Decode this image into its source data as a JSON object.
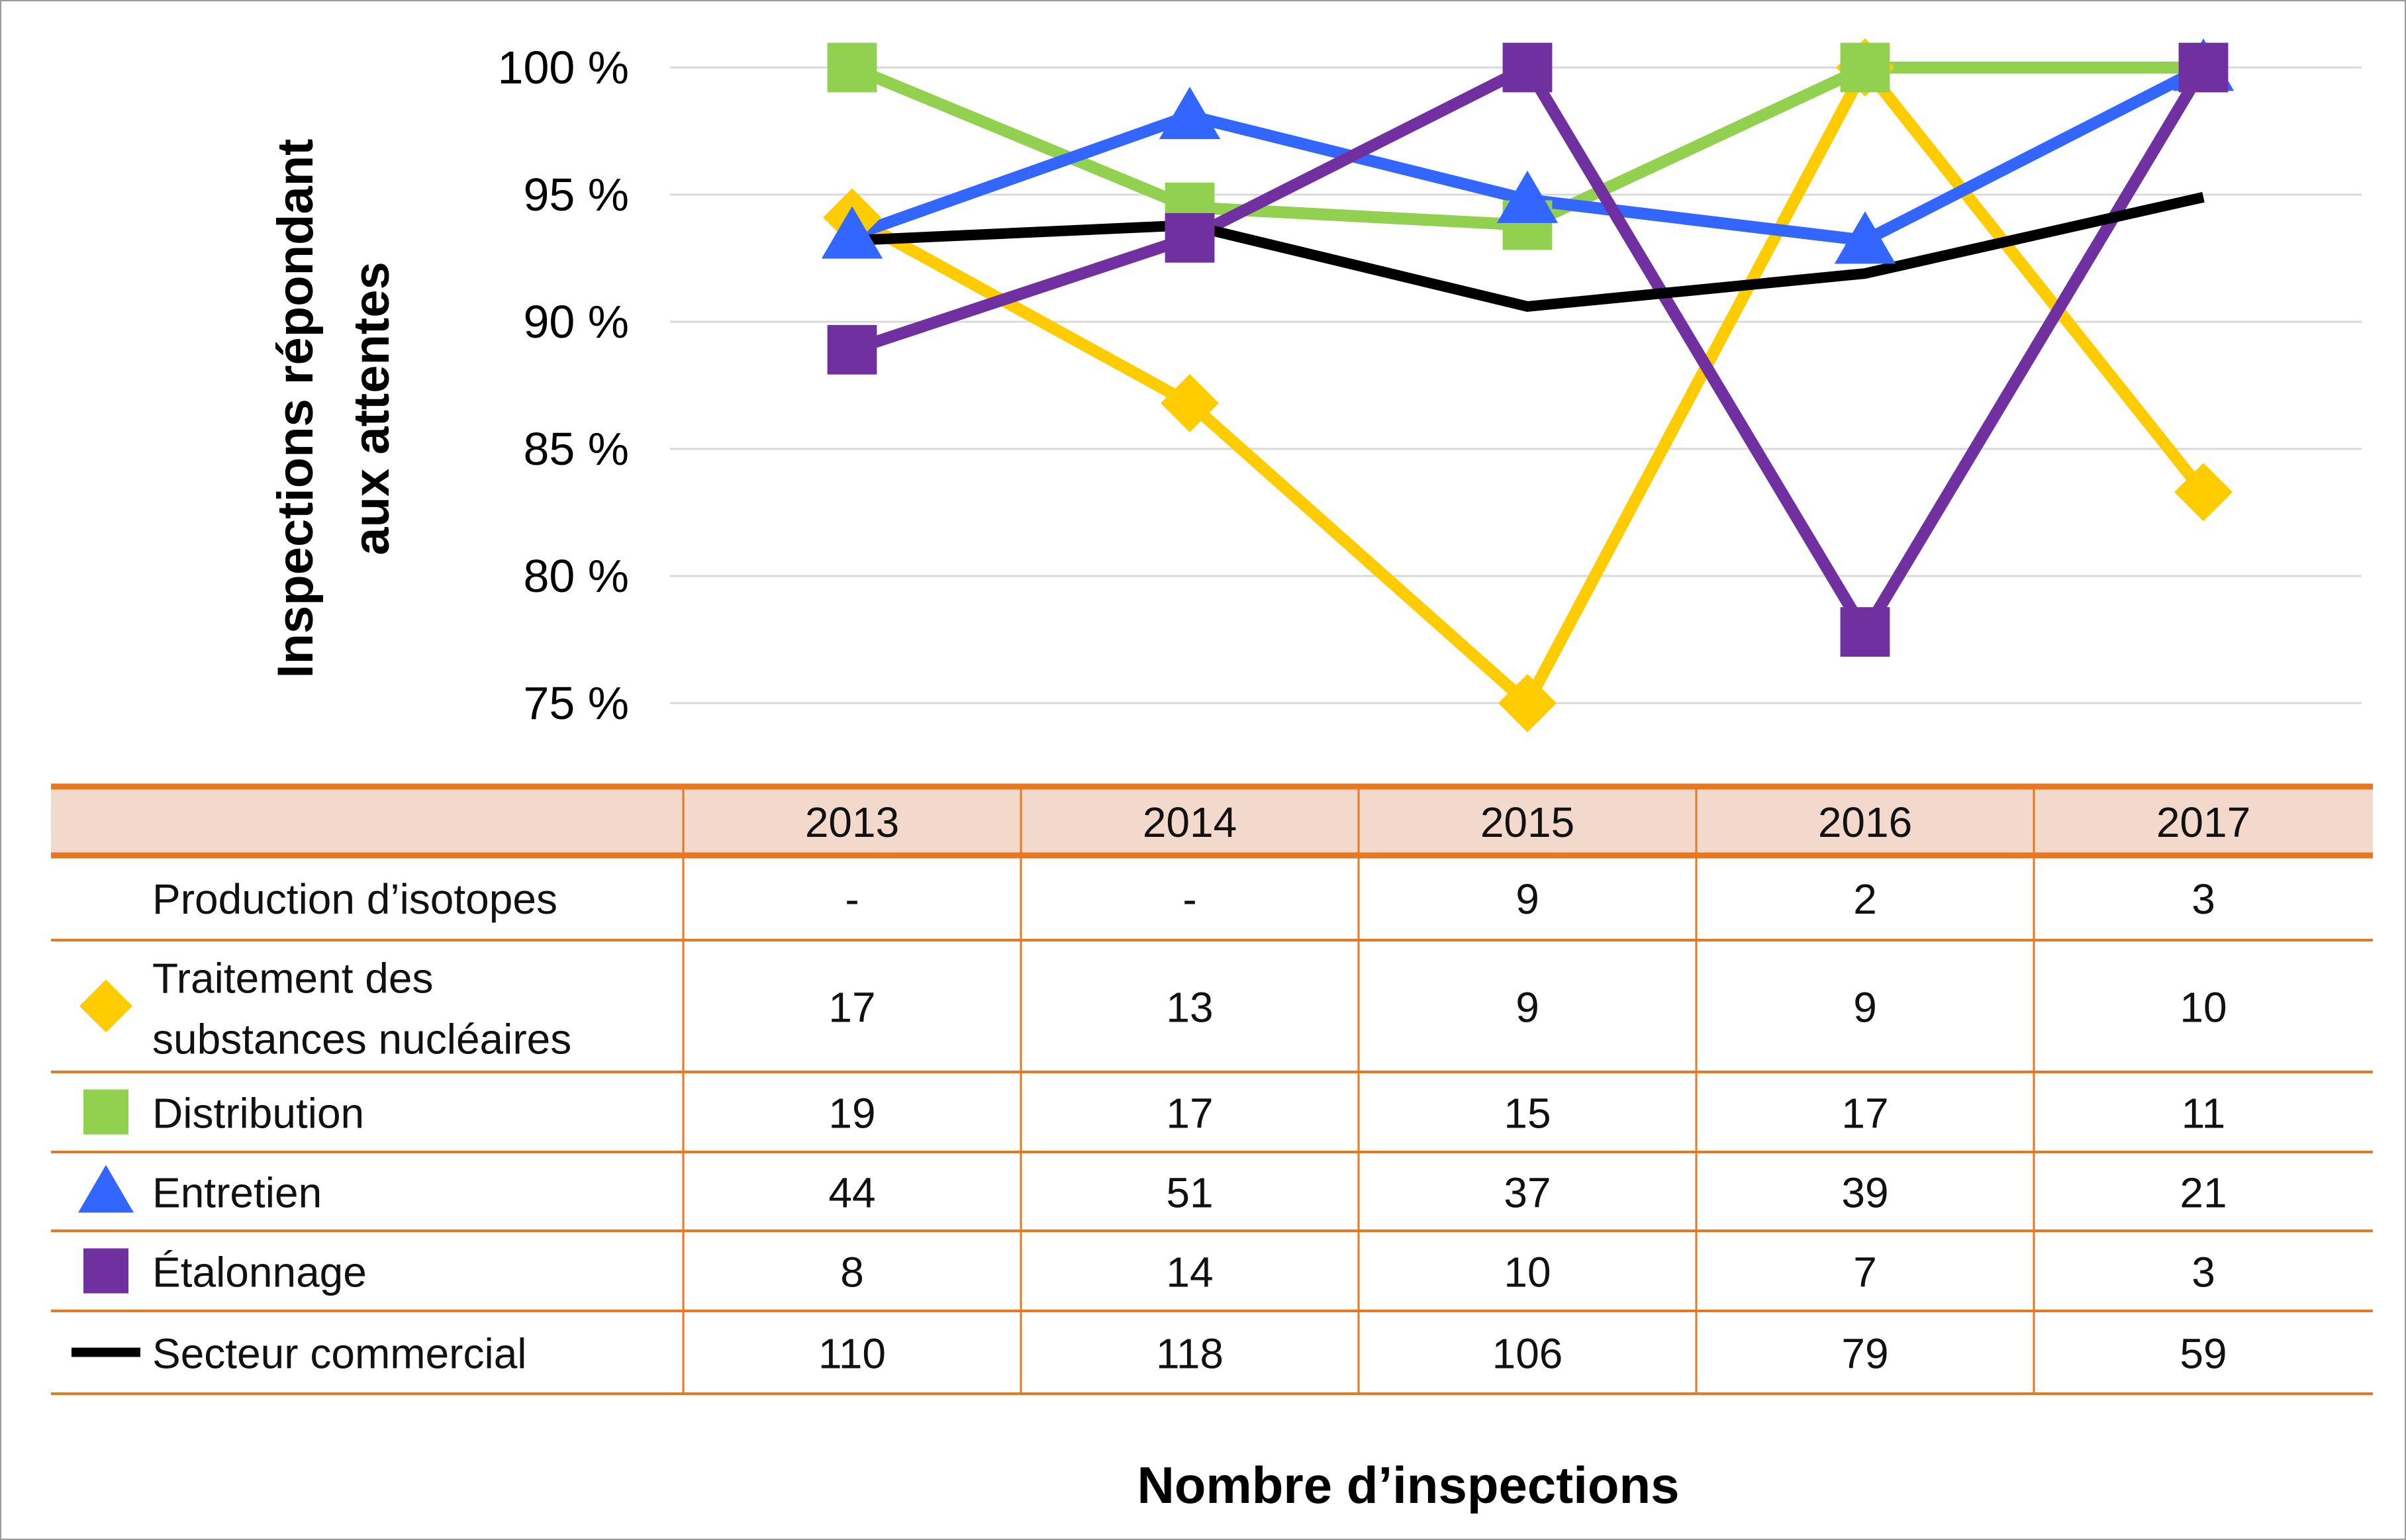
{
  "chart_data": {
    "type": "line",
    "ylabel": "Inspections répondant aux attentes",
    "xlabel": "Nombre d’inspections",
    "ylim": [
      75,
      100
    ],
    "yticks": [
      100,
      95,
      90,
      85,
      80,
      75
    ],
    "ytick_labels": [
      "100 %",
      "95 %",
      "90 %",
      "85 %",
      "80 %",
      "75 %"
    ],
    "grid": true,
    "x": [
      "2013",
      "2014",
      "2015",
      "2016",
      "2017"
    ],
    "series": [
      {
        "name": "Traitement des substances nucléaires",
        "label_lines": [
          "Traitement des",
          "substances nucléaires"
        ],
        "marker": "diamond",
        "color": "#FFCC00",
        "values": [
          94.1,
          86.8,
          75.0,
          100.0,
          83.3
        ]
      },
      {
        "name": "Distribution",
        "label_lines": [
          "Distribution"
        ],
        "marker": "square",
        "color": "#92D050",
        "values": [
          100.0,
          94.5,
          93.8,
          100.0,
          100.0
        ]
      },
      {
        "name": "Entretien",
        "label_lines": [
          "Entretien"
        ],
        "marker": "triangle",
        "color": "#3366FF",
        "values": [
          93.4,
          98.1,
          94.8,
          93.2,
          100.0
        ]
      },
      {
        "name": "Étalonnage",
        "label_lines": [
          "Étalonnage"
        ],
        "marker": "square",
        "color": "#7030A0",
        "values": [
          88.9,
          93.3,
          100.0,
          77.8,
          100.0
        ]
      },
      {
        "name": "Secteur commercial",
        "label_lines": [
          "Secteur commercial"
        ],
        "marker": "line",
        "color": "#000000",
        "values": [
          93.2,
          93.8,
          90.6,
          91.9,
          94.9
        ]
      }
    ],
    "table": {
      "header": [
        "",
        "2013",
        "2014",
        "2015",
        "2016",
        "2017"
      ],
      "rows": [
        {
          "label_lines": [
            "Production d’isotopes"
          ],
          "marker": "none",
          "color": "",
          "values": [
            "-",
            "-",
            "9",
            "2",
            "3"
          ]
        },
        {
          "label_lines": [
            "Traitement des",
            "substances nucléaires"
          ],
          "marker": "diamond",
          "color": "#FFCC00",
          "values": [
            "17",
            "13",
            "9",
            "9",
            "10"
          ]
        },
        {
          "label_lines": [
            "Distribution"
          ],
          "marker": "square",
          "color": "#92D050",
          "values": [
            "19",
            "17",
            "15",
            "17",
            "11"
          ]
        },
        {
          "label_lines": [
            "Entretien"
          ],
          "marker": "triangle",
          "color": "#3366FF",
          "values": [
            "44",
            "51",
            "37",
            "39",
            "21"
          ]
        },
        {
          "label_lines": [
            "Étalonnage"
          ],
          "marker": "square",
          "color": "#7030A0",
          "values": [
            "8",
            "14",
            "10",
            "7",
            "3"
          ]
        },
        {
          "label_lines": [
            "Secteur commercial"
          ],
          "marker": "line",
          "color": "#000000",
          "values": [
            "110",
            "118",
            "106",
            "79",
            "59"
          ]
        }
      ],
      "accent_color": "#E87722",
      "header_fill": "#F2D9CC"
    }
  }
}
